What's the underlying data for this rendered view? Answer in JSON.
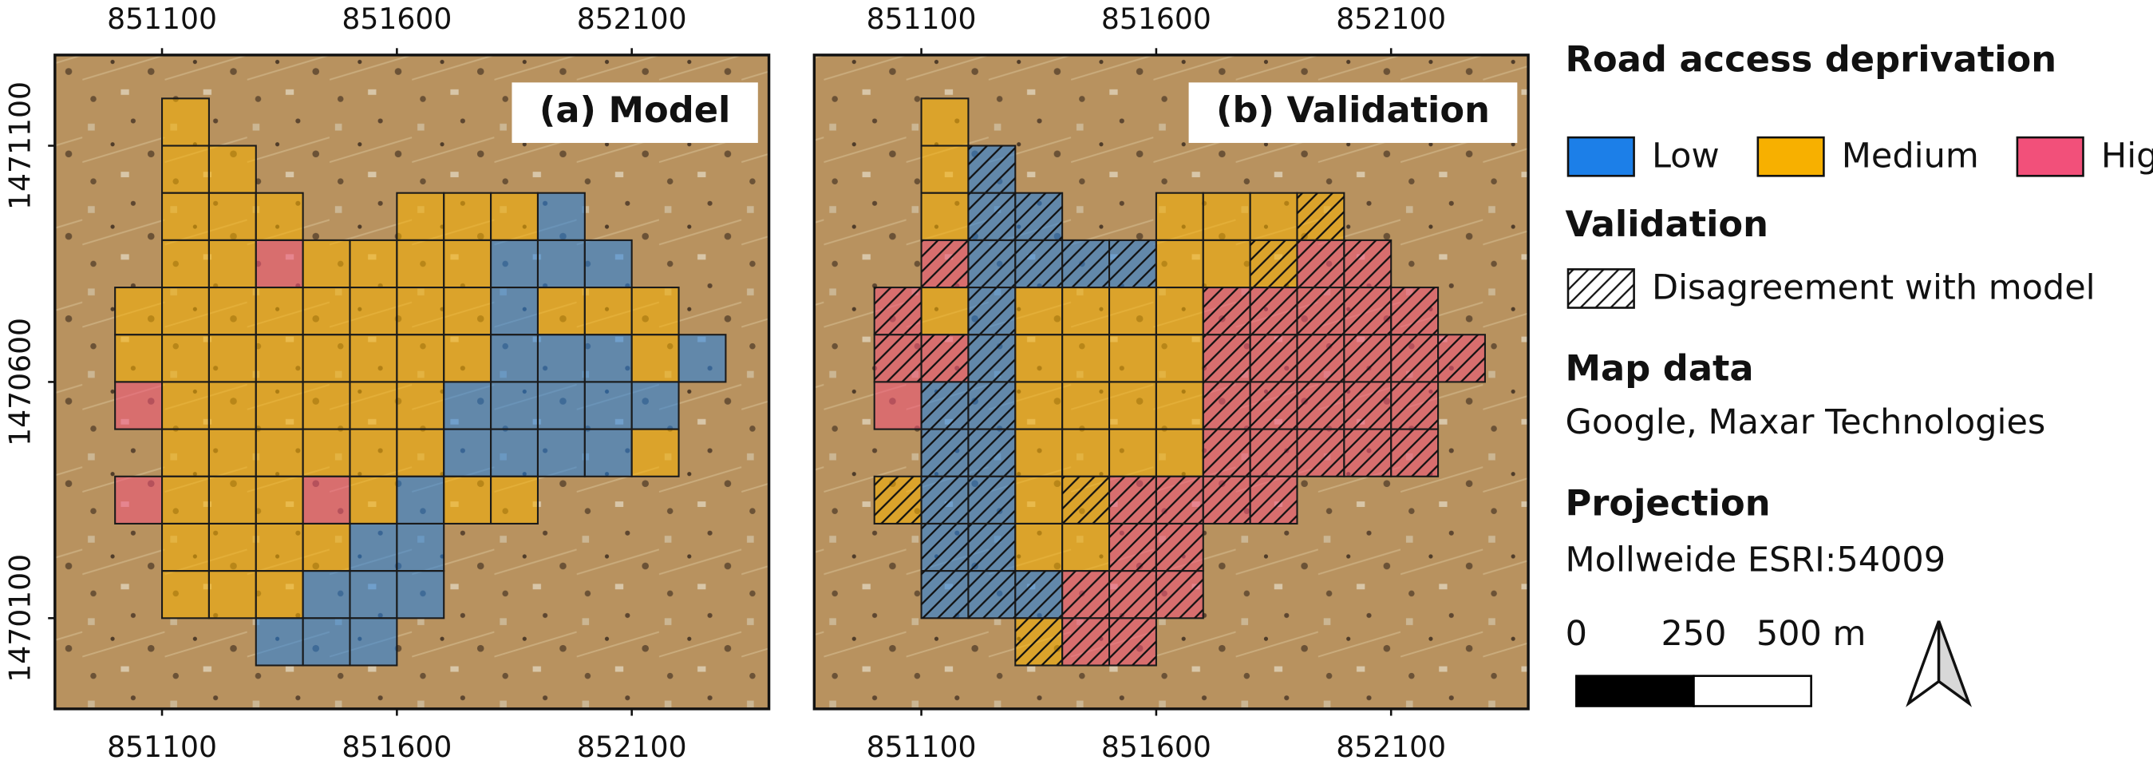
{
  "panels": [
    {
      "title": "(a) Model"
    },
    {
      "title": "(b) Validation"
    }
  ],
  "xlim": [
    850872,
    852392
  ],
  "ylim": [
    1469908,
    1471292
  ],
  "xticks": [
    851100,
    851600,
    852100
  ],
  "yticks": [
    1470100,
    1470600,
    1471100
  ],
  "legend": {
    "title": "Road access deprivation",
    "classes": [
      {
        "name": "Low",
        "color": "#1c7fe8"
      },
      {
        "name": "Medium",
        "color": "#f7b000"
      },
      {
        "name": "High",
        "color": "#f2507a"
      }
    ],
    "validation_title": "Validation",
    "disagreement": "Disagreement with model",
    "map_data_title": "Map data",
    "map_data": "Google, Maxar Technologies",
    "projection_title": "Projection",
    "projection": "Mollweide ESRI:54009"
  },
  "scale_bar": {
    "ticks": [
      0,
      250,
      {
        "value": 500,
        "label": "500 m"
      }
    ]
  },
  "cells": [
    [
      851100,
      1471100,
      1,
      1
    ],
    [
      851100,
      1471000,
      1,
      1
    ],
    [
      851200,
      1471000,
      1,
      0
    ],
    [
      851100,
      1470900,
      1,
      1
    ],
    [
      851200,
      1470900,
      1,
      0
    ],
    [
      851300,
      1470900,
      1,
      0
    ],
    [
      851600,
      1470900,
      1,
      1
    ],
    [
      851700,
      1470900,
      1,
      1
    ],
    [
      851800,
      1470900,
      1,
      1
    ],
    [
      851900,
      1470900,
      0,
      1
    ],
    [
      851100,
      1470800,
      1,
      2
    ],
    [
      851200,
      1470800,
      1,
      0
    ],
    [
      851300,
      1470800,
      2,
      0
    ],
    [
      851400,
      1470800,
      1,
      0
    ],
    [
      851500,
      1470800,
      1,
      0
    ],
    [
      851600,
      1470800,
      1,
      1
    ],
    [
      851700,
      1470800,
      1,
      1
    ],
    [
      851800,
      1470800,
      0,
      1
    ],
    [
      851900,
      1470800,
      0,
      2
    ],
    [
      852000,
      1470800,
      0,
      2
    ],
    [
      851000,
      1470700,
      1,
      2
    ],
    [
      851100,
      1470700,
      1,
      1
    ],
    [
      851200,
      1470700,
      1,
      0
    ],
    [
      851300,
      1470700,
      1,
      1
    ],
    [
      851400,
      1470700,
      1,
      1
    ],
    [
      851500,
      1470700,
      1,
      1
    ],
    [
      851600,
      1470700,
      1,
      1
    ],
    [
      851700,
      1470700,
      1,
      2
    ],
    [
      851800,
      1470700,
      0,
      2
    ],
    [
      851900,
      1470700,
      1,
      2
    ],
    [
      852000,
      1470700,
      1,
      2
    ],
    [
      852100,
      1470700,
      1,
      2
    ],
    [
      851000,
      1470600,
      1,
      2
    ],
    [
      851100,
      1470600,
      1,
      2
    ],
    [
      851200,
      1470600,
      1,
      0
    ],
    [
      851300,
      1470600,
      1,
      1
    ],
    [
      851400,
      1470600,
      1,
      1
    ],
    [
      851500,
      1470600,
      1,
      1
    ],
    [
      851600,
      1470600,
      1,
      1
    ],
    [
      851700,
      1470600,
      1,
      2
    ],
    [
      851800,
      1470600,
      0,
      2
    ],
    [
      851900,
      1470600,
      0,
      2
    ],
    [
      852000,
      1470600,
      0,
      2
    ],
    [
      852100,
      1470600,
      1,
      2
    ],
    [
      852200,
      1470600,
      0,
      2
    ],
    [
      851000,
      1470500,
      2,
      2
    ],
    [
      851100,
      1470500,
      1,
      0
    ],
    [
      851200,
      1470500,
      1,
      0
    ],
    [
      851300,
      1470500,
      1,
      1
    ],
    [
      851400,
      1470500,
      1,
      1
    ],
    [
      851500,
      1470500,
      1,
      1
    ],
    [
      851600,
      1470500,
      1,
      1
    ],
    [
      851700,
      1470500,
      0,
      2
    ],
    [
      851800,
      1470500,
      0,
      2
    ],
    [
      851900,
      1470500,
      0,
      2
    ],
    [
      852000,
      1470500,
      0,
      2
    ],
    [
      852100,
      1470500,
      0,
      2
    ],
    [
      851100,
      1470400,
      1,
      0
    ],
    [
      851200,
      1470400,
      1,
      0
    ],
    [
      851300,
      1470400,
      1,
      1
    ],
    [
      851400,
      1470400,
      1,
      1
    ],
    [
      851500,
      1470400,
      1,
      1
    ],
    [
      851600,
      1470400,
      1,
      1
    ],
    [
      851700,
      1470400,
      0,
      2
    ],
    [
      851800,
      1470400,
      0,
      2
    ],
    [
      851900,
      1470400,
      0,
      2
    ],
    [
      852000,
      1470400,
      0,
      2
    ],
    [
      852100,
      1470400,
      1,
      2
    ],
    [
      851000,
      1470300,
      2,
      1
    ],
    [
      851100,
      1470300,
      1,
      0
    ],
    [
      851200,
      1470300,
      1,
      0
    ],
    [
      851300,
      1470300,
      1,
      1
    ],
    [
      851400,
      1470300,
      2,
      1
    ],
    [
      851500,
      1470300,
      1,
      2
    ],
    [
      851600,
      1470300,
      0,
      2
    ],
    [
      851700,
      1470300,
      1,
      2
    ],
    [
      851800,
      1470300,
      1,
      2
    ],
    [
      851100,
      1470200,
      1,
      0
    ],
    [
      851200,
      1470200,
      1,
      0
    ],
    [
      851300,
      1470200,
      1,
      1
    ],
    [
      851400,
      1470200,
      1,
      1
    ],
    [
      851500,
      1470200,
      0,
      2
    ],
    [
      851600,
      1470200,
      0,
      2
    ],
    [
      851100,
      1470100,
      1,
      0
    ],
    [
      851200,
      1470100,
      1,
      0
    ],
    [
      851300,
      1470100,
      1,
      0
    ],
    [
      851400,
      1470100,
      0,
      2
    ],
    [
      851500,
      1470100,
      0,
      2
    ],
    [
      851600,
      1470100,
      0,
      2
    ],
    [
      851300,
      1470000,
      0,
      1
    ],
    [
      851400,
      1470000,
      0,
      2
    ],
    [
      851500,
      1470000,
      0,
      2
    ]
  ]
}
